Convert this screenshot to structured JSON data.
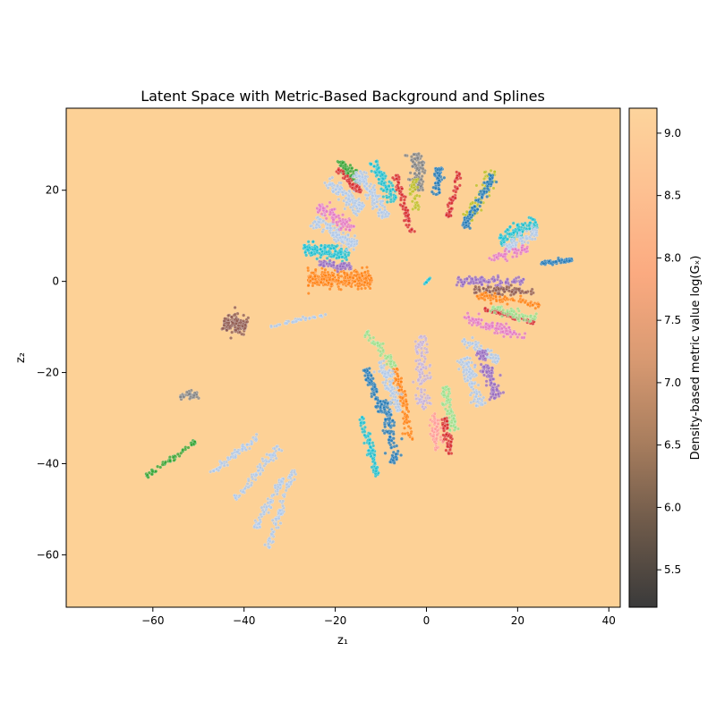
{
  "chart_data": {
    "type": "scatter",
    "title": "Latent Space with Metric-Based Background and Splines",
    "xlabel": "z₁",
    "ylabel": "z₂",
    "xlim": [
      -79,
      42.5
    ],
    "ylim": [
      -71.5,
      38
    ],
    "xticks": [
      -60,
      -40,
      -20,
      0,
      20,
      40
    ],
    "yticks": [
      -60,
      -40,
      -20,
      0,
      20
    ],
    "xtick_labels": [
      "−60",
      "−40",
      "−20",
      "0",
      "20",
      "40"
    ],
    "ytick_labels": [
      "−60",
      "−40",
      "−20",
      "0",
      "20"
    ],
    "background_color": "#fdd196",
    "grid": false,
    "colorbar": {
      "label": "Density-based metric value log(Gₓ)",
      "range": [
        5.2,
        9.2
      ],
      "ticks": [
        5.5,
        6.0,
        6.5,
        7.0,
        7.5,
        8.0,
        8.5,
        9.0
      ],
      "tick_labels": [
        "5.5",
        "6.0",
        "6.5",
        "7.0",
        "7.5",
        "8.0",
        "8.5",
        "9.0"
      ],
      "colors": [
        "#3a3a3a",
        "#6e5a4a",
        "#a97e5e",
        "#d99a72",
        "#fbaa80",
        "#fdc091",
        "#fdd49c"
      ]
    },
    "clusters": [
      {
        "color": "#ff7f0e",
        "center": [
          -19,
          0.5
        ],
        "length": 14,
        "width": 1.8,
        "angle": 0,
        "n": 320
      },
      {
        "color": "#17becf",
        "center": [
          -22,
          6.5
        ],
        "length": 10,
        "width": 1.5,
        "angle": -8,
        "n": 160
      },
      {
        "color": "#9467bd",
        "center": [
          -20,
          3.5
        ],
        "length": 7,
        "width": 0.9,
        "angle": -5,
        "n": 70
      },
      {
        "color": "#aec7e8",
        "center": [
          -20,
          10.5
        ],
        "length": 11,
        "width": 1.4,
        "angle": -30,
        "n": 140
      },
      {
        "color": "#e377c2",
        "center": [
          -20,
          14
        ],
        "length": 9,
        "width": 1.3,
        "angle": -35,
        "n": 100
      },
      {
        "color": "#aec7e8",
        "center": [
          -18,
          19
        ],
        "length": 10,
        "width": 1.6,
        "angle": -40,
        "n": 130
      },
      {
        "color": "#2ca02c",
        "center": [
          -17,
          24
        ],
        "length": 7,
        "width": 1.2,
        "angle": -45,
        "n": 60
      },
      {
        "color": "#d62728",
        "center": [
          -17,
          22
        ],
        "length": 7,
        "width": 0.8,
        "angle": -45,
        "n": 60
      },
      {
        "color": "#aec7e8",
        "center": [
          -12,
          19
        ],
        "length": 12,
        "width": 1.4,
        "angle": -58,
        "n": 130
      },
      {
        "color": "#17becf",
        "center": [
          -9.5,
          22
        ],
        "length": 10,
        "width": 1.2,
        "angle": -62,
        "n": 90
      },
      {
        "color": "#d62728",
        "center": [
          -5,
          17
        ],
        "length": 13,
        "width": 0.7,
        "angle": -75,
        "n": 80
      },
      {
        "color": "#7f7f7f",
        "center": [
          -2,
          24
        ],
        "length": 8,
        "width": 1.5,
        "angle": -88,
        "n": 110
      },
      {
        "color": "#bcbd22",
        "center": [
          -2.5,
          19
        ],
        "length": 7,
        "width": 1.0,
        "angle": -85,
        "n": 40
      },
      {
        "color": "#1f77b4",
        "center": [
          2.5,
          22
        ],
        "length": 6,
        "width": 0.9,
        "angle": 85,
        "n": 60
      },
      {
        "color": "#d62728",
        "center": [
          6,
          19
        ],
        "length": 10,
        "width": 0.7,
        "angle": 75,
        "n": 60
      },
      {
        "color": "#bcbd22",
        "center": [
          12,
          19
        ],
        "length": 12,
        "width": 1.4,
        "angle": 60,
        "n": 100
      },
      {
        "color": "#1f77b4",
        "center": [
          11.5,
          17.5
        ],
        "length": 13,
        "width": 1.0,
        "angle": 60,
        "n": 110
      },
      {
        "color": "#17becf",
        "center": [
          20,
          11
        ],
        "length": 9,
        "width": 1.6,
        "angle": 30,
        "n": 110
      },
      {
        "color": "#aec7e8",
        "center": [
          21,
          9
        ],
        "length": 8,
        "width": 1.4,
        "angle": 28,
        "n": 80
      },
      {
        "color": "#e377c2",
        "center": [
          18,
          6
        ],
        "length": 9,
        "width": 0.9,
        "angle": 15,
        "n": 60
      },
      {
        "color": "#1f77b4",
        "center": [
          28.5,
          4.3
        ],
        "length": 7,
        "width": 0.5,
        "angle": 6,
        "n": 60
      },
      {
        "color": "#9467bd",
        "center": [
          14,
          0
        ],
        "length": 15,
        "width": 1.0,
        "angle": 0,
        "n": 110
      },
      {
        "color": "#8c564b",
        "center": [
          17,
          -2
        ],
        "length": 13,
        "width": 1.0,
        "angle": -4,
        "n": 90
      },
      {
        "color": "#ff7f0e",
        "center": [
          18,
          -4
        ],
        "length": 14,
        "width": 0.8,
        "angle": -8,
        "n": 80
      },
      {
        "color": "#e377c2",
        "center": [
          15,
          -10
        ],
        "length": 14,
        "width": 1.2,
        "angle": -18,
        "n": 110
      },
      {
        "color": "#d62728",
        "center": [
          18,
          -7.5
        ],
        "length": 12,
        "width": 0.6,
        "angle": -15,
        "n": 70
      },
      {
        "color": "#98df8a",
        "center": [
          19,
          -7
        ],
        "length": 10,
        "width": 0.9,
        "angle": -12,
        "n": 60
      },
      {
        "color": "#aec7e8",
        "center": [
          12,
          -15
        ],
        "length": 9,
        "width": 1.1,
        "angle": -30,
        "n": 70
      },
      {
        "color": "#9467bd",
        "center": [
          13.5,
          -20.5
        ],
        "length": 11,
        "width": 1.4,
        "angle": -70,
        "n": 120
      },
      {
        "color": "#aec7e8",
        "center": [
          10,
          -22
        ],
        "length": 11,
        "width": 1.5,
        "angle": -72,
        "n": 110
      },
      {
        "color": "#98df8a",
        "center": [
          5,
          -28
        ],
        "length": 10,
        "width": 1.2,
        "angle": -78,
        "n": 80
      },
      {
        "color": "#d62728",
        "center": [
          4.5,
          -34
        ],
        "length": 8,
        "width": 0.8,
        "angle": -80,
        "n": 60
      },
      {
        "color": "#c5b0d5",
        "center": [
          -1,
          -20
        ],
        "length": 16,
        "width": 1.6,
        "angle": -88,
        "n": 130
      },
      {
        "color": "#ff9896",
        "center": [
          2,
          -33
        ],
        "length": 8,
        "width": 1.2,
        "angle": -84,
        "n": 60
      },
      {
        "color": "#ff7f0e",
        "center": [
          -5,
          -27
        ],
        "length": 16,
        "width": 1.0,
        "angle": -78,
        "n": 100
      },
      {
        "color": "#1f77b4",
        "center": [
          -8,
          -33
        ],
        "length": 14,
        "width": 1.2,
        "angle": -80,
        "n": 110
      },
      {
        "color": "#aec7e8",
        "center": [
          -8,
          -23
        ],
        "length": 12,
        "width": 1.4,
        "angle": -70,
        "n": 100
      },
      {
        "color": "#1f77b4",
        "center": [
          -11.5,
          -24
        ],
        "length": 10,
        "width": 0.9,
        "angle": -70,
        "n": 80
      },
      {
        "color": "#17becf",
        "center": [
          -12.5,
          -36
        ],
        "length": 14,
        "width": 0.8,
        "angle": -74,
        "n": 80
      },
      {
        "color": "#98df8a",
        "center": [
          -10,
          -15
        ],
        "length": 10,
        "width": 1.0,
        "angle": -50,
        "n": 60
      },
      {
        "color": "#8c564b",
        "center": [
          -42,
          -9.5
        ],
        "length": 5,
        "width": 2.2,
        "angle": -15,
        "n": 160
      },
      {
        "color": "#aec7e8",
        "center": [
          -28,
          -8.5
        ],
        "length": 13,
        "width": 0.4,
        "angle": 12,
        "n": 40
      },
      {
        "color": "#7f7f7f",
        "center": [
          -52,
          -25
        ],
        "length": 4,
        "width": 0.7,
        "angle": 5,
        "n": 40
      },
      {
        "color": "#2ca02c",
        "center": [
          -56,
          -39
        ],
        "length": 13,
        "width": 0.5,
        "angle": 35,
        "n": 60
      },
      {
        "color": "#aec7e8",
        "center": [
          -42,
          -38
        ],
        "length": 14,
        "width": 0.8,
        "angle": 38,
        "n": 70
      },
      {
        "color": "#aec7e8",
        "center": [
          -37,
          -42
        ],
        "length": 15,
        "width": 0.9,
        "angle": 50,
        "n": 80
      },
      {
        "color": "#aec7e8",
        "center": [
          -34,
          -48
        ],
        "length": 14,
        "width": 0.8,
        "angle": 60,
        "n": 70
      },
      {
        "color": "#aec7e8",
        "center": [
          -32,
          -50
        ],
        "length": 18,
        "width": 0.7,
        "angle": 72,
        "n": 80
      },
      {
        "color": "#ffbb78",
        "center": [
          0,
          0
        ],
        "length": 1,
        "width": 0.3,
        "angle": 0,
        "n": 5
      },
      {
        "color": "#17becf",
        "center": [
          0.2,
          0.1
        ],
        "length": 2,
        "width": 0.1,
        "angle": 50,
        "n": 10
      }
    ]
  }
}
